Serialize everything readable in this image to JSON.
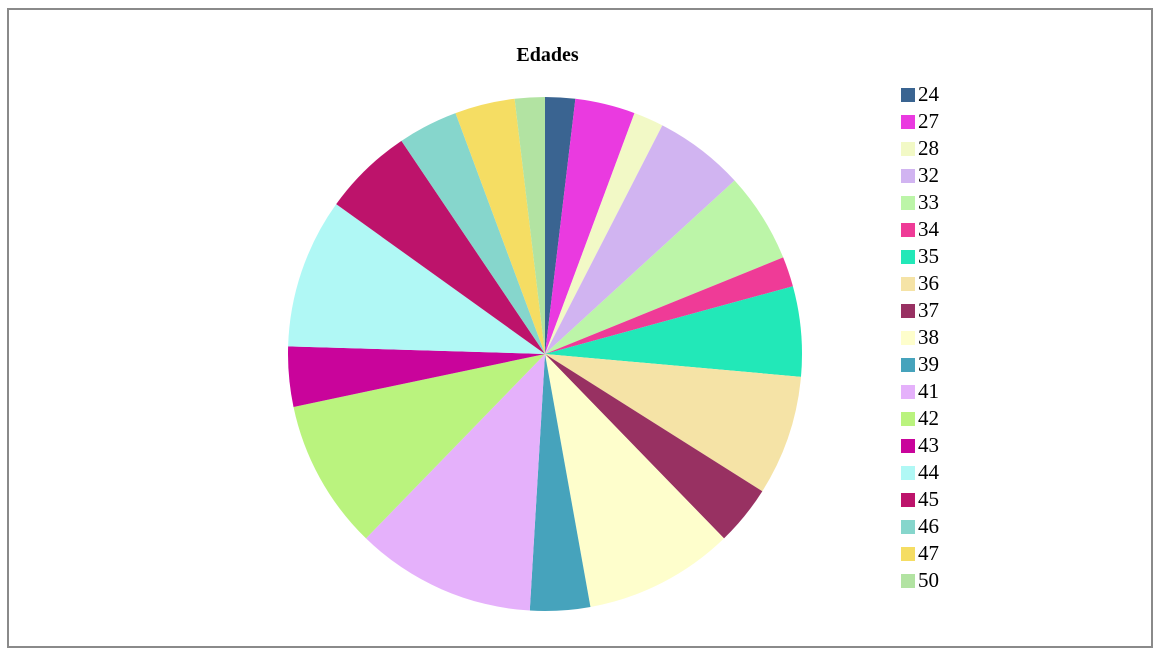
{
  "chart_data": {
    "type": "pie",
    "title": "Edades",
    "legend_position": "right",
    "categories": [
      "24",
      "27",
      "28",
      "32",
      "33",
      "34",
      "35",
      "36",
      "37",
      "38",
      "39",
      "41",
      "42",
      "43",
      "44",
      "45",
      "46",
      "47",
      "50"
    ],
    "values": [
      1,
      2,
      1,
      3,
      3,
      1,
      3,
      4,
      2,
      5,
      2,
      6,
      5,
      2,
      5,
      3,
      2,
      2,
      1
    ],
    "colors": [
      "#3a6491",
      "#ea3ae0",
      "#f2f9c6",
      "#d1b4f1",
      "#bcf5a8",
      "#ef3b97",
      "#22e8b8",
      "#f5e3a6",
      "#983162",
      "#fefecc",
      "#46a3bc",
      "#e5b1fb",
      "#baf37e",
      "#c9049b",
      "#b0f8f5",
      "#bd136b",
      "#86d6cc",
      "#f5dd63",
      "#b2e3a2"
    ]
  }
}
